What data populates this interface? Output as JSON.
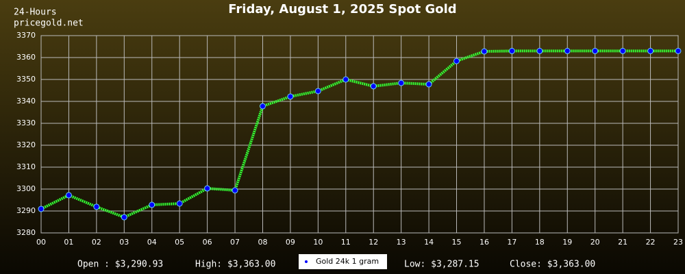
{
  "chart_data": {
    "type": "line",
    "title": "Friday, August 1, 2025 Spot Gold",
    "corner_texts": [
      "24-Hours",
      "pricegold.net"
    ],
    "categories": [
      "00",
      "01",
      "02",
      "03",
      "04",
      "05",
      "06",
      "07",
      "08",
      "09",
      "10",
      "11",
      "12",
      "13",
      "14",
      "15",
      "16",
      "17",
      "18",
      "19",
      "20",
      "21",
      "22",
      "23"
    ],
    "series": [
      {
        "name": "Gold 24k 1 gram",
        "color": "#33ff33",
        "marker_color": "#0000ff",
        "values": [
          3290.93,
          3297.2,
          3291.9,
          3287.15,
          3292.8,
          3293.4,
          3300.3,
          3299.4,
          3337.8,
          3342.2,
          3344.7,
          3350,
          3346.9,
          3348.4,
          3347.8,
          3358.4,
          3362.8,
          3363,
          3363,
          3363,
          3363,
          3363,
          3363,
          3363
        ]
      }
    ],
    "ylim": [
      3280,
      3370
    ],
    "yticks": [
      3280,
      3290,
      3300,
      3310,
      3320,
      3330,
      3340,
      3350,
      3360,
      3370
    ],
    "grid": true,
    "stats": [
      "Open : $3,290.93",
      "High: $3,363.00",
      "Low: $3,287.15",
      "Close: $3,363.00"
    ]
  }
}
